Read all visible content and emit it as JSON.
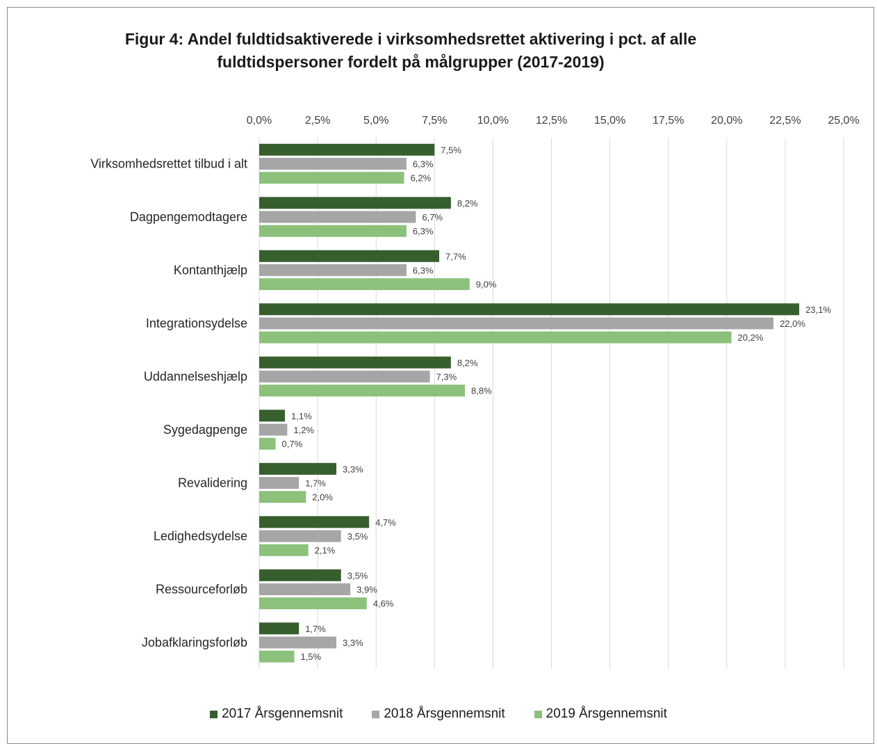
{
  "chart_data": {
    "type": "bar",
    "orientation": "horizontal",
    "title_line1": "Figur 4: Andel fuldtidsaktiverede i virksomhedsrettet aktivering i pct. af alle",
    "title_line2": "fuldtidspersoner fordelt på målgrupper  (2017-2019)",
    "categories": [
      "Virksomhedsrettet tilbud i alt",
      "Dagpengemodtagere",
      "Kontanthjælp",
      "Integrationsydelse",
      "Uddannelseshjælp",
      "Sygedagpenge",
      "Revalidering",
      "Ledighedsydelse",
      "Ressourceforløb",
      "Jobafklaringsforløb"
    ],
    "series": [
      {
        "name": "2017 Årsgennemsnit",
        "color": "#375f2e",
        "values": [
          7.5,
          8.2,
          7.7,
          23.1,
          8.2,
          1.1,
          3.3,
          4.7,
          3.5,
          1.7
        ],
        "labels": [
          "7,5%",
          "8,2%",
          "7,7%",
          "23,1%",
          "8,2%",
          "1,1%",
          "3,3%",
          "4,7%",
          "3,5%",
          "1,7%"
        ]
      },
      {
        "name": "2018 Årsgennemsnit",
        "color": "#a6a6a6",
        "values": [
          6.3,
          6.7,
          6.3,
          22.0,
          7.3,
          1.2,
          1.7,
          3.5,
          3.9,
          3.3
        ],
        "labels": [
          "6,3%",
          "6,7%",
          "6,3%",
          "22,0%",
          "7,3%",
          "1,2%",
          "1,7%",
          "3,5%",
          "3,9%",
          "3,3%"
        ]
      },
      {
        "name": "2019 Årsgennemsnit",
        "color": "#8cc17b",
        "values": [
          6.2,
          6.3,
          9.0,
          20.2,
          8.8,
          0.7,
          2.0,
          2.1,
          4.6,
          1.5
        ],
        "labels": [
          "6,2%",
          "6,3%",
          "9,0%",
          "20,2%",
          "8,8%",
          "0,7%",
          "2,0%",
          "2,1%",
          "4,6%",
          "1,5%"
        ]
      }
    ],
    "x_ticks": [
      "0,0%",
      "2,5%",
      "5,0%",
      "7,5%",
      "10,0%",
      "12,5%",
      "15,0%",
      "17,5%",
      "20,0%",
      "22,5%",
      "25,0%"
    ],
    "xlim": [
      0,
      25
    ],
    "x_axis_position": "top",
    "grid": true,
    "legend_position": "bottom"
  }
}
